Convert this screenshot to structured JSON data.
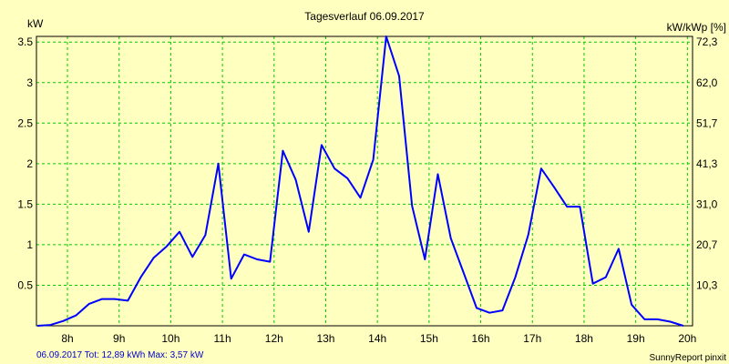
{
  "chart_data": {
    "type": "line",
    "title": "Tagesverlauf 06.09.2017",
    "ylabel_left": "kW",
    "ylabel_right": "kW/kWp [%]",
    "grid": true,
    "xlim": [
      7.4,
      20.1
    ],
    "ylim": [
      0,
      3.57
    ],
    "x_ticks": [
      8,
      9,
      10,
      11,
      12,
      13,
      14,
      15,
      16,
      17,
      18,
      19,
      20
    ],
    "x_tick_labels": [
      "8h",
      "9h",
      "10h",
      "11h",
      "12h",
      "13h",
      "14h",
      "15h",
      "16h",
      "17h",
      "18h",
      "19h",
      "20h"
    ],
    "y_ticks": [
      0.5,
      1,
      1.5,
      2,
      2.5,
      3,
      3.5
    ],
    "y_tick_labels": [
      "0.5",
      "1",
      "1.5",
      "2",
      "2.5",
      "3",
      "3.5"
    ],
    "y2_ticks": [
      0.5,
      1,
      1.5,
      2,
      2.5,
      3,
      3.5
    ],
    "y2_tick_labels": [
      "10,3",
      "20,7",
      "31,0",
      "41,3",
      "51,7",
      "62,0",
      "72,3"
    ],
    "line_color": "#0000ff",
    "grid_color": "#00cc00",
    "background_color": "#ffffc0",
    "series": [
      {
        "x": [
          7.42,
          7.67,
          7.92,
          8.17,
          8.42,
          8.67,
          8.92,
          9.17,
          9.42,
          9.67,
          9.92,
          10.17,
          10.42,
          10.67,
          10.92,
          11.17,
          11.42,
          11.67,
          11.92,
          12.17,
          12.42,
          12.67,
          12.92,
          13.17,
          13.42,
          13.67,
          13.92,
          14.17,
          14.42,
          14.67,
          14.92,
          15.17,
          15.42,
          15.67,
          15.92,
          16.17,
          16.42,
          16.67,
          16.92,
          17.17,
          17.42,
          17.67,
          17.92,
          18.17,
          18.42,
          18.67,
          18.92,
          19.17,
          19.42,
          19.67,
          19.92
        ],
        "y": [
          0.0,
          0.01,
          0.06,
          0.13,
          0.27,
          0.33,
          0.33,
          0.31,
          0.6,
          0.84,
          0.98,
          1.16,
          0.85,
          1.12,
          2.0,
          0.58,
          0.88,
          0.82,
          0.79,
          2.16,
          1.8,
          1.16,
          2.23,
          1.94,
          1.82,
          1.58,
          2.05,
          3.57,
          3.08,
          1.48,
          0.82,
          1.87,
          1.08,
          0.65,
          0.22,
          0.16,
          0.19,
          0.6,
          1.12,
          1.94,
          1.71,
          1.47,
          1.47,
          0.52,
          0.6,
          0.95,
          0.26,
          0.08,
          0.08,
          0.05,
          0.0
        ]
      }
    ]
  },
  "footer": {
    "left": "06.09.2017 Tot: 12,89 kWh Max: 3,57 kW",
    "right": "SunnyReport pinxit"
  }
}
